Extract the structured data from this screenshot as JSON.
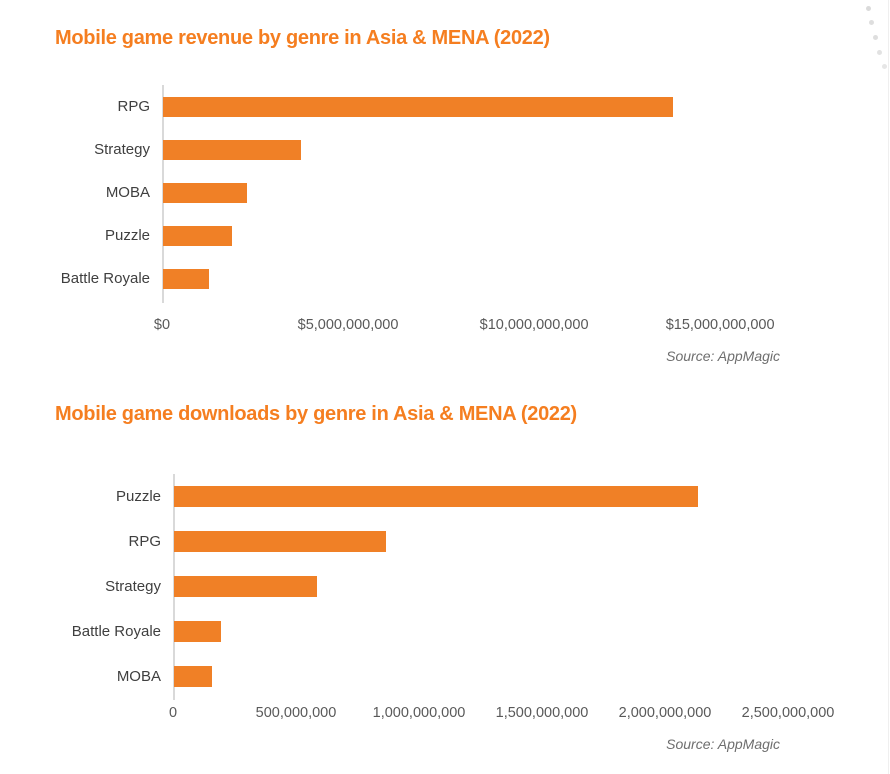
{
  "chart_data": [
    {
      "type": "bar",
      "orientation": "horizontal",
      "title": "Mobile game revenue by genre in Asia & MENA (2022)",
      "source": "Source: AppMagic",
      "categories": [
        "RPG",
        "Strategy",
        "MOBA",
        "Puzzle",
        "Battle Royale"
      ],
      "values": [
        13700000000,
        3720000000,
        2250000000,
        1850000000,
        1230000000
      ],
      "x_ticks": [
        0,
        5000000000,
        10000000000,
        15000000000
      ],
      "x_tick_labels": [
        "$0",
        "$5,000,000,000",
        "$10,000,000,000",
        "$15,000,000,000"
      ],
      "xlim": [
        0,
        17200000000
      ],
      "grid": false,
      "legend": false
    },
    {
      "type": "bar",
      "orientation": "horizontal",
      "title": "Mobile game downloads by genre in Asia & MENA (2022)",
      "source": "Source: AppMagic",
      "categories": [
        "Puzzle",
        "RPG",
        "Strategy",
        "Battle Royale",
        "MOBA"
      ],
      "values": [
        2130000000,
        860000000,
        580000000,
        190000000,
        155000000
      ],
      "x_ticks": [
        0,
        500000000,
        1000000000,
        1500000000,
        2000000000,
        2500000000
      ],
      "x_tick_labels": [
        "0",
        "500,000,000",
        "1,000,000,000",
        "1,500,000,000",
        "2,000,000,000",
        "2,500,000,000"
      ],
      "xlim": [
        0,
        2630000000
      ],
      "grid": false,
      "legend": false
    }
  ],
  "colors": {
    "title": "#F57E20",
    "bar": "#F08026",
    "axis_line": "#D9D9D9",
    "tick_label": "#595959",
    "category_label": "#3F3F3F",
    "source_label": "#6E6E6E",
    "decor_dot": "#D8D8D8"
  }
}
